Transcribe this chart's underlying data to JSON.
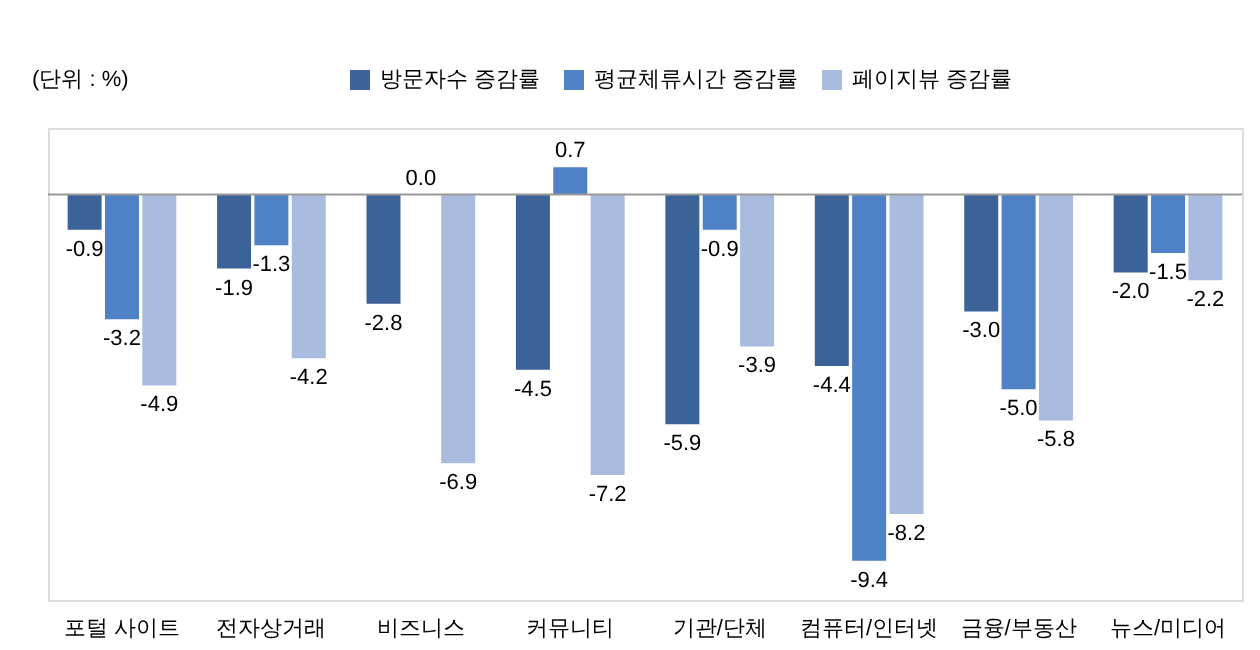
{
  "chart_data": {
    "type": "bar",
    "annotations": [
      "(단위 : %)"
    ],
    "categories": [
      "포털 사이트",
      "전자상거래",
      "비즈니스",
      "커뮤니티",
      "기관/단체",
      "컴퓨터/인터넷",
      "금융/부동산",
      "뉴스/미디어"
    ],
    "series": [
      {
        "name": "방문자수 증감률",
        "color": "#3b6299",
        "values": [
          -0.9,
          -1.9,
          -2.8,
          -4.5,
          -5.9,
          -4.4,
          -3.0,
          -2.0
        ],
        "value_labels": [
          "-0.9",
          "-1.9",
          "-2.8",
          "-4.5",
          "-5.9",
          "-4.4",
          "-3.0",
          "-2.0"
        ]
      },
      {
        "name": "평균체류시간 증감률",
        "color": "#4f81c7",
        "values": [
          -3.2,
          -1.3,
          0.0,
          0.7,
          -0.9,
          -9.4,
          -5.0,
          -1.5
        ],
        "value_labels": [
          "-3.2",
          "-1.3",
          "0.0",
          "0.7",
          "-0.9",
          "-9.4",
          "-5.0",
          "-1.5"
        ]
      },
      {
        "name": "페이지뷰 증감률",
        "color": "#a9bbdf",
        "values": [
          -4.9,
          -4.2,
          -6.9,
          -7.2,
          -3.9,
          -8.2,
          -5.8,
          -2.2
        ],
        "value_labels": [
          "-4.9",
          "-4.2",
          "-6.9",
          "-7.2",
          "-3.9",
          "-8.2",
          "-5.8",
          "-2.2"
        ]
      }
    ],
    "legend": "top"
  }
}
